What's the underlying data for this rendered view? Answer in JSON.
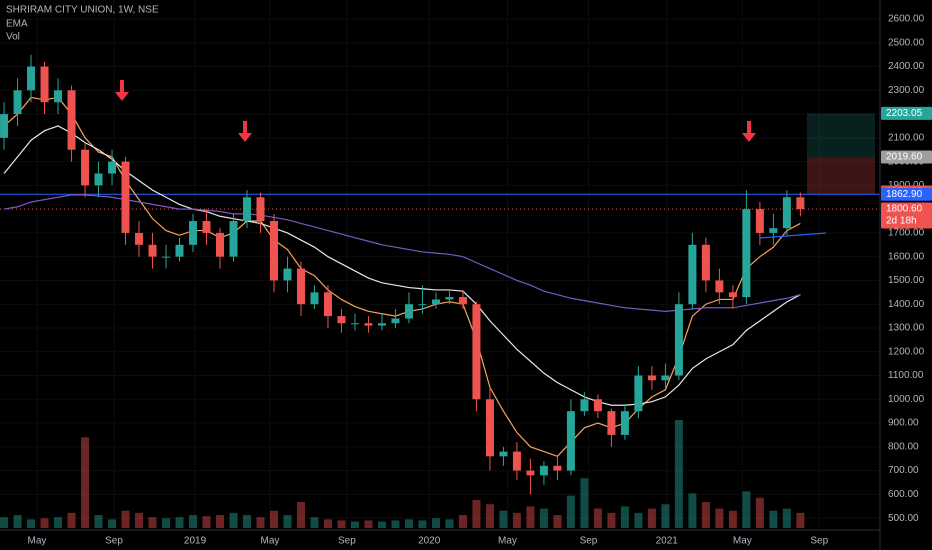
{
  "chart_data": {
    "type": "candlestick",
    "title": "SHRIRAM CITY UNION, 1W, NSE",
    "indicator_labels": [
      "EMA",
      "Vol"
    ],
    "up_color": "#26a69a",
    "down_color": "#ef5350",
    "x": [
      0,
      1,
      2,
      3,
      4,
      5,
      6,
      7,
      8,
      9,
      10,
      11,
      12,
      13,
      14,
      15,
      16,
      17,
      18,
      19,
      20,
      21,
      22,
      23,
      24,
      25,
      26,
      27,
      28,
      29,
      30,
      31,
      32,
      33,
      34,
      35,
      36,
      37,
      38,
      39,
      40,
      41,
      42,
      43,
      44,
      45,
      46,
      47,
      48,
      49,
      50,
      51,
      52,
      53,
      54,
      55,
      56,
      57,
      58,
      59
    ],
    "open": [
      2100,
      2200,
      2300,
      2400,
      2250,
      2300,
      2050,
      1900,
      1950,
      2000,
      1700,
      1650,
      1600,
      1600,
      1650,
      1750,
      1700,
      1600,
      1750,
      1850,
      1750,
      1500,
      1550,
      1400,
      1450,
      1350,
      1320,
      1320,
      1310,
      1320,
      1340,
      1400,
      1400,
      1420,
      1430,
      1400,
      1000,
      760,
      780,
      700,
      680,
      720,
      700,
      950,
      1000,
      950,
      850,
      950,
      1100,
      1080,
      1100,
      1400,
      1650,
      1500,
      1450,
      1430,
      1800,
      1700,
      1720,
      1850
    ],
    "high": [
      2250,
      2350,
      2450,
      2420,
      2350,
      2320,
      2080,
      2000,
      2050,
      2020,
      1750,
      1700,
      1650,
      1680,
      1780,
      1800,
      1720,
      1780,
      1880,
      1870,
      1780,
      1600,
      1580,
      1480,
      1480,
      1380,
      1360,
      1350,
      1360,
      1380,
      1450,
      1480,
      1450,
      1460,
      1460,
      1410,
      1050,
      800,
      820,
      750,
      740,
      760,
      1000,
      1030,
      1020,
      960,
      980,
      1140,
      1140,
      1150,
      1450,
      1700,
      1680,
      1550,
      1480,
      1880,
      1830,
      1780,
      1880,
      1870
    ],
    "low": [
      2050,
      2150,
      2250,
      2200,
      2200,
      2000,
      1850,
      1850,
      1900,
      1650,
      1600,
      1550,
      1550,
      1580,
      1620,
      1650,
      1550,
      1580,
      1720,
      1700,
      1450,
      1450,
      1350,
      1380,
      1300,
      1280,
      1290,
      1280,
      1290,
      1300,
      1320,
      1360,
      1380,
      1400,
      1380,
      950,
      700,
      720,
      660,
      600,
      640,
      660,
      680,
      930,
      920,
      800,
      830,
      920,
      1040,
      1050,
      1080,
      1380,
      1450,
      1400,
      1380,
      1400,
      1650,
      1650,
      1690,
      1770
    ],
    "close": [
      2200,
      2300,
      2400,
      2250,
      2300,
      2050,
      1900,
      1950,
      2000,
      1700,
      1650,
      1600,
      1600,
      1650,
      1750,
      1700,
      1600,
      1750,
      1850,
      1750,
      1500,
      1550,
      1400,
      1450,
      1350,
      1320,
      1320,
      1310,
      1320,
      1340,
      1400,
      1400,
      1420,
      1430,
      1400,
      1000,
      760,
      780,
      700,
      680,
      720,
      700,
      950,
      1000,
      950,
      850,
      950,
      1100,
      1080,
      1100,
      1400,
      1650,
      1500,
      1450,
      1430,
      1800,
      1700,
      1720,
      1850,
      1800
    ],
    "volume": [
      50,
      60,
      40,
      45,
      50,
      70,
      420,
      60,
      40,
      80,
      70,
      50,
      45,
      50,
      60,
      55,
      60,
      70,
      60,
      50,
      80,
      60,
      120,
      50,
      40,
      35,
      30,
      35,
      30,
      35,
      40,
      35,
      45,
      40,
      60,
      130,
      110,
      80,
      70,
      100,
      90,
      60,
      150,
      230,
      90,
      70,
      100,
      70,
      90,
      110,
      500,
      160,
      120,
      90,
      80,
      170,
      140,
      80,
      90,
      70
    ],
    "series": [
      {
        "color": "#f7a35c",
        "values": [
          2150,
          2200,
          2270,
          2260,
          2270,
          2200,
          2100,
          2040,
          2020,
          1920,
          1840,
          1760,
          1710,
          1690,
          1710,
          1710,
          1680,
          1700,
          1750,
          1750,
          1670,
          1630,
          1550,
          1520,
          1460,
          1420,
          1390,
          1370,
          1360,
          1350,
          1370,
          1380,
          1400,
          1410,
          1400,
          1250,
          1050,
          950,
          860,
          800,
          780,
          760,
          820,
          880,
          900,
          880,
          900,
          960,
          1010,
          1040,
          1180,
          1350,
          1400,
          1420,
          1420,
          1550,
          1600,
          1640,
          1710,
          1740
        ]
      },
      {
        "color": "#e8e8e8",
        "values": [
          1950,
          2020,
          2090,
          2130,
          2150,
          2120,
          2080,
          2050,
          2010,
          1960,
          1920,
          1880,
          1850,
          1820,
          1800,
          1790,
          1770,
          1760,
          1750,
          1740,
          1720,
          1700,
          1670,
          1640,
          1600,
          1570,
          1540,
          1510,
          1490,
          1480,
          1470,
          1465,
          1460,
          1460,
          1455,
          1400,
          1330,
          1270,
          1210,
          1160,
          1110,
          1070,
          1040,
          1010,
          990,
          975,
          975,
          980,
          990,
          1010,
          1060,
          1130,
          1170,
          1200,
          1230,
          1290,
          1330,
          1370,
          1410,
          1440
        ]
      },
      {
        "color": "#7e57c2",
        "values": [
          1800,
          1810,
          1830,
          1840,
          1850,
          1860,
          1860,
          1855,
          1850,
          1840,
          1830,
          1820,
          1810,
          1800,
          1800,
          1795,
          1790,
          1780,
          1780,
          1775,
          1765,
          1755,
          1740,
          1725,
          1710,
          1695,
          1680,
          1665,
          1650,
          1640,
          1630,
          1620,
          1615,
          1610,
          1600,
          1575,
          1550,
          1525,
          1500,
          1480,
          1455,
          1440,
          1425,
          1415,
          1405,
          1395,
          1385,
          1380,
          1375,
          1370,
          1375,
          1380,
          1385,
          1385,
          1385,
          1395,
          1405,
          1415,
          1425,
          1440
        ]
      }
    ],
    "xlim": [
      -0.3,
      64.9
    ],
    "xticks": [
      {
        "value": 2.44,
        "label": "May"
      },
      {
        "value": 8.15,
        "label": "Sep"
      },
      {
        "value": 14.15,
        "label": "2019"
      },
      {
        "value": 19.7,
        "label": "May"
      },
      {
        "value": 25.4,
        "label": "Sep"
      },
      {
        "value": 31.5,
        "label": "2020"
      },
      {
        "value": 37.3,
        "label": "May"
      },
      {
        "value": 43.3,
        "label": "Sep"
      },
      {
        "value": 49.1,
        "label": "2021"
      },
      {
        "value": 54.7,
        "label": "May"
      },
      {
        "value": 60.4,
        "label": "Sep"
      }
    ],
    "ylim": [
      450,
      2680
    ],
    "yticks": [
      {
        "value": 500,
        "label": "500.00"
      },
      {
        "value": 600,
        "label": "600.00"
      },
      {
        "value": 700,
        "label": "700.00"
      },
      {
        "value": 800,
        "label": "800.00"
      },
      {
        "value": 900,
        "label": "900.00"
      },
      {
        "value": 1000,
        "label": "1000.00"
      },
      {
        "value": 1100,
        "label": "1100.00"
      },
      {
        "value": 1200,
        "label": "1200.00"
      },
      {
        "value": 1300,
        "label": "1300.00"
      },
      {
        "value": 1400,
        "label": "1400.00"
      },
      {
        "value": 1500,
        "label": "1500.00"
      },
      {
        "value": 1600,
        "label": "1600.00"
      },
      {
        "value": 1700,
        "label": "1700.00"
      },
      {
        "value": 1800,
        "label": "1800.00"
      },
      {
        "value": 1900,
        "label": "1900.00"
      },
      {
        "value": 2000,
        "label": "2000.00"
      },
      {
        "value": 2100,
        "label": "2100.00"
      },
      {
        "value": 2200,
        "label": "2200.00"
      },
      {
        "value": 2300,
        "label": "2300.00"
      },
      {
        "value": 2400,
        "label": "2400.00"
      },
      {
        "value": 2500,
        "label": "2500.00"
      },
      {
        "value": 2600,
        "label": "2600.00"
      }
    ],
    "price_labels": [
      {
        "value": 2203.05,
        "color": "#26a69a"
      },
      {
        "value": 2019.6,
        "label": "2019.60",
        "color": "#9e9e9e"
      },
      {
        "value": 1872.05,
        "color": "#ef5350"
      },
      {
        "value": 1862.9,
        "label": "1862.90",
        "color": "#2962ff"
      },
      {
        "value": 1800.6,
        "label": "1800.60",
        "color": "#ef5350"
      }
    ],
    "countdown": "2d 18h"
  }
}
